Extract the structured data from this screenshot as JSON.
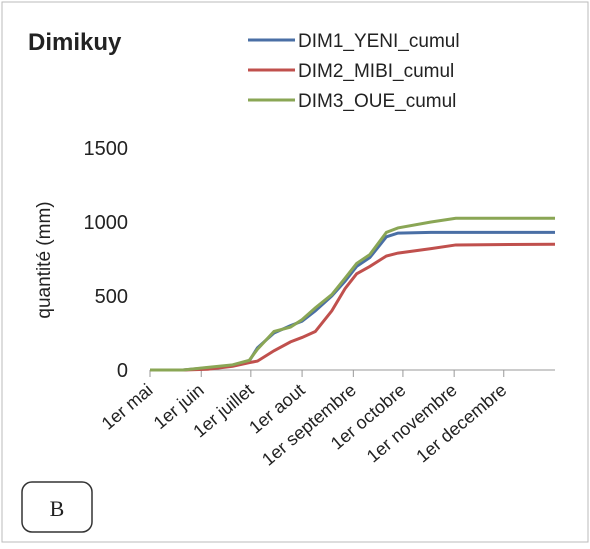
{
  "chart_data": {
    "type": "line",
    "title": "Dimikuy",
    "y_label": "quantité (mm)",
    "annotation": "B",
    "xlim": [
      0,
      245
    ],
    "xticks": [
      {
        "value": 0,
        "label": "1er mai"
      },
      {
        "value": 31,
        "label": "1er juin"
      },
      {
        "value": 61,
        "label": "1er juillet"
      },
      {
        "value": 92,
        "label": "1er aout"
      },
      {
        "value": 123,
        "label": "1er septembre"
      },
      {
        "value": 153,
        "label": "1er octobre"
      },
      {
        "value": 184,
        "label": "1er novembre"
      },
      {
        "value": 214,
        "label": "1er decembre"
      }
    ],
    "ylim": [
      0,
      1500
    ],
    "yticks": [
      0,
      500,
      1000,
      1500
    ],
    "x": [
      0,
      20,
      35,
      50,
      60,
      65,
      75,
      85,
      92,
      100,
      110,
      118,
      125,
      133,
      143,
      150,
      170,
      185,
      245
    ],
    "series": [
      {
        "name": "DIM1_YENI_cumul",
        "color": "#4a6fa5",
        "values": [
          0,
          0,
          15,
          30,
          60,
          150,
          250,
          300,
          330,
          400,
          500,
          600,
          700,
          760,
          900,
          925,
          930,
          930,
          930
        ]
      },
      {
        "name": "DIM2_MIBI_cumul",
        "color": "#c0504d",
        "values": [
          0,
          0,
          5,
          25,
          50,
          60,
          130,
          190,
          220,
          260,
          400,
          550,
          650,
          700,
          770,
          790,
          820,
          845,
          850
        ]
      },
      {
        "name": "DIM3_OUE_cumul",
        "color": "#8aa655",
        "values": [
          0,
          0,
          18,
          35,
          65,
          140,
          260,
          290,
          340,
          420,
          510,
          620,
          720,
          780,
          930,
          960,
          1000,
          1025,
          1025
        ]
      }
    ]
  }
}
